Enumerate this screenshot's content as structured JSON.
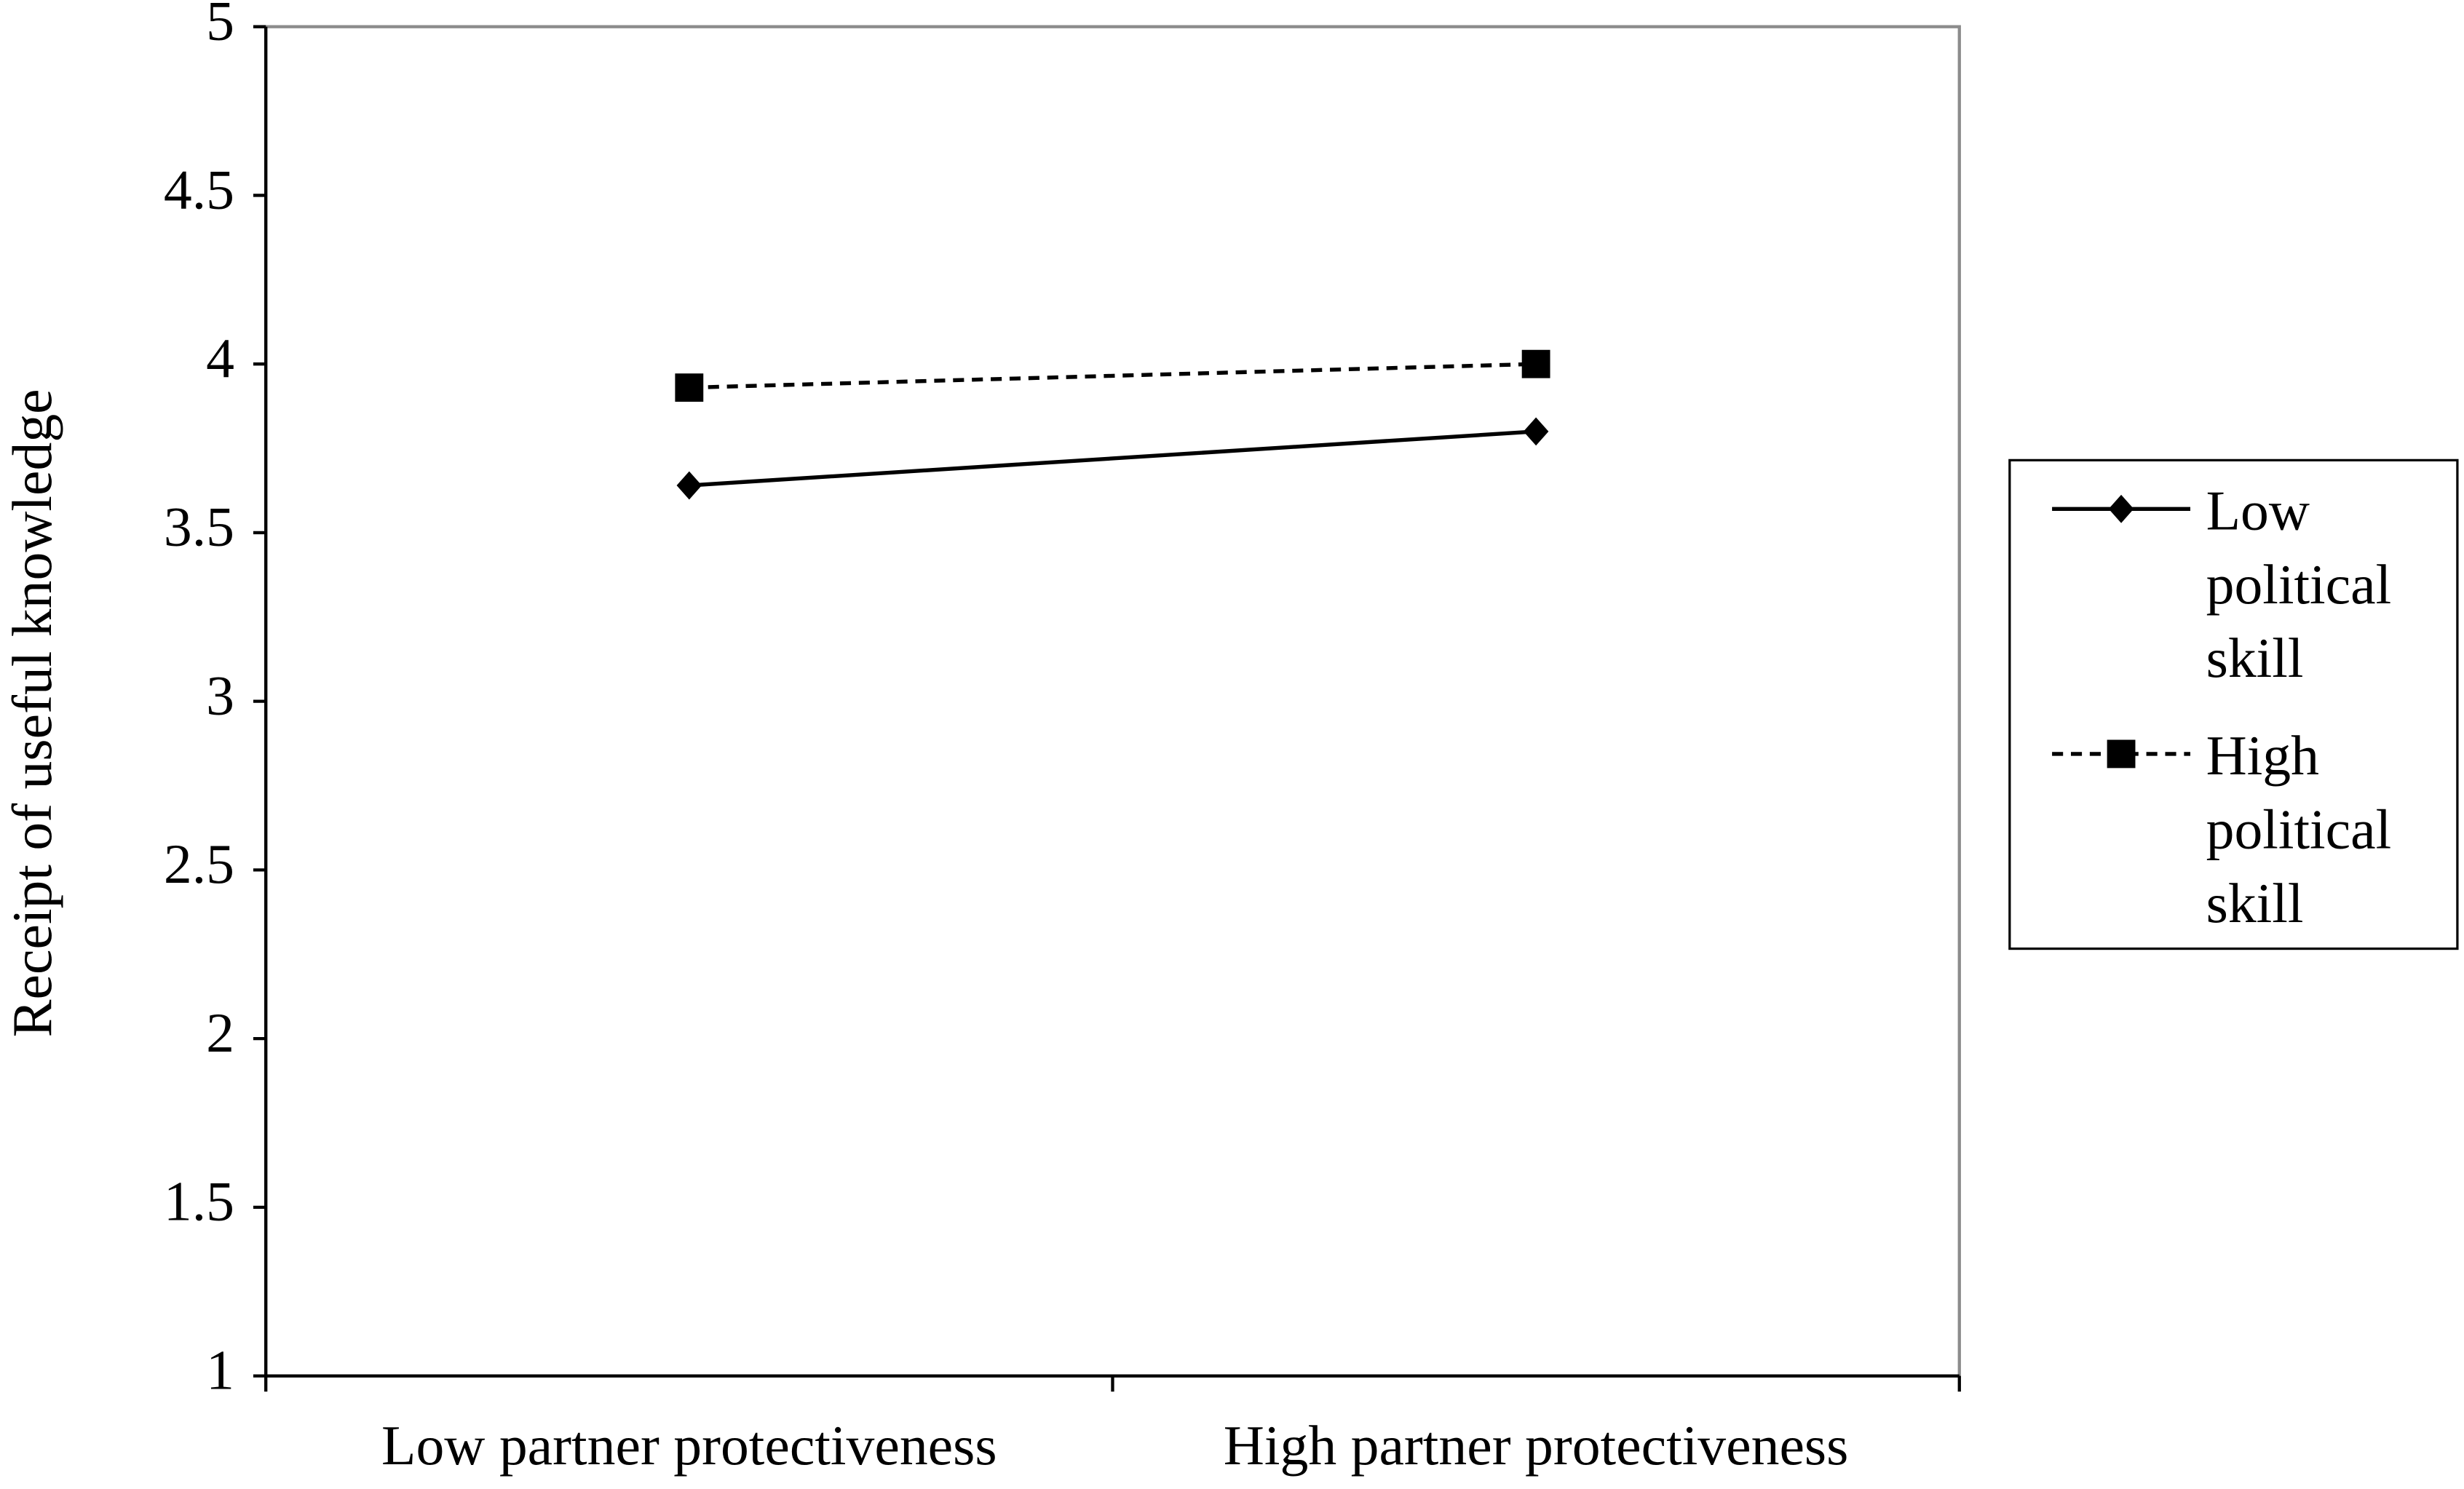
{
  "chart_data": {
    "type": "line",
    "y_label": "Receipt of useful knowledge",
    "categories": [
      "Low partner protectiveness",
      "High partner protectiveness"
    ],
    "series": [
      {
        "name": "Low political skill",
        "color": "#000000",
        "line_style": "solid",
        "marker": "diamond",
        "values": [
          3.64,
          3.8
        ]
      },
      {
        "name": "High political skill",
        "color": "#000000",
        "line_style": "dashed",
        "marker": "square",
        "values": [
          3.93,
          4.0
        ]
      }
    ],
    "ylim": [
      1,
      5
    ],
    "yticks": [
      1,
      1.5,
      2,
      2.5,
      3,
      3.5,
      4,
      4.5,
      5
    ],
    "grid": false,
    "legend": "right"
  }
}
